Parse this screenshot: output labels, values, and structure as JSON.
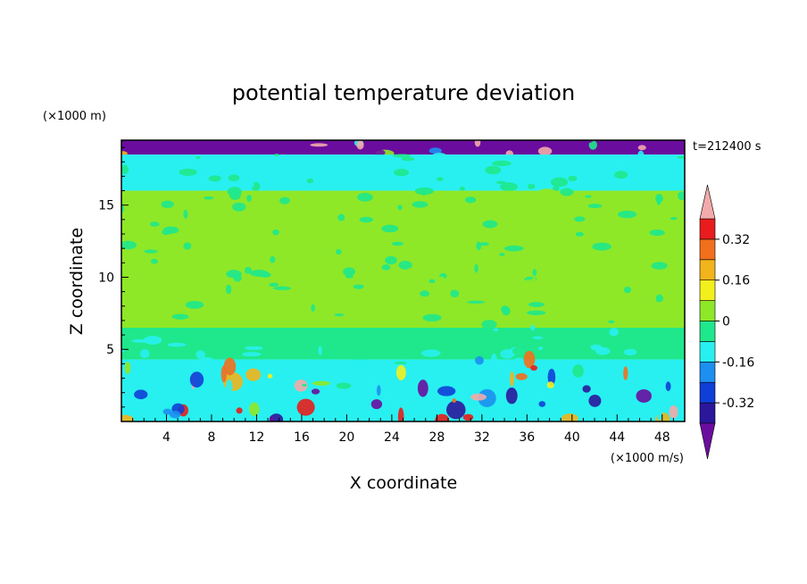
{
  "chart_data": {
    "type": "heatmap",
    "title": "potential temperature deviation",
    "xlabel": "X coordinate",
    "ylabel": "Z coordinate",
    "x_unit": "(×1000 m/s)",
    "y_unit": "(×1000 m)",
    "time_label": "t=212400 s",
    "xlim": [
      0,
      50
    ],
    "ylim": [
      0,
      19.5
    ],
    "x_ticks": [
      4,
      8,
      12,
      16,
      20,
      24,
      28,
      32,
      36,
      40,
      44,
      48
    ],
    "y_ticks": [
      5,
      10,
      15
    ],
    "colorbar": {
      "levels": [
        -0.4,
        -0.32,
        -0.24,
        -0.16,
        -0.08,
        0,
        0.08,
        0.16,
        0.24,
        0.32,
        0.4
      ],
      "labels": [
        "0.32",
        "0.16",
        "0",
        "-0.16",
        "-0.32"
      ],
      "label_values": [
        0.32,
        0.16,
        0,
        -0.16,
        -0.32
      ],
      "colors": [
        "#6a0d9e",
        "#2b179c",
        "#0f3fd6",
        "#1c8ff0",
        "#29f0f0",
        "#1fe88c",
        "#8fe827",
        "#f2f01c",
        "#f2b41c",
        "#f26f1c",
        "#e81c1c",
        "#f2aaaa"
      ],
      "extend": "both"
    },
    "layers": [
      {
        "z_range": [
          18.5,
          19.5
        ],
        "dominant": "#6a0d9e",
        "secondary": "#f2aaaa"
      },
      {
        "z_range": [
          16,
          18.5
        ],
        "dominant": "#29f0f0",
        "secondary": "#1fe88c"
      },
      {
        "z_range": [
          6.5,
          16
        ],
        "dominant": "#8fe827",
        "secondary": "#1fe88c"
      },
      {
        "z_range": [
          4.3,
          6.5
        ],
        "dominant": "#1fe88c",
        "secondary": "#29f0f0"
      },
      {
        "z_range": [
          0,
          4.3
        ],
        "dominant": "#29f0f0",
        "secondary": "#2b179c"
      }
    ]
  }
}
